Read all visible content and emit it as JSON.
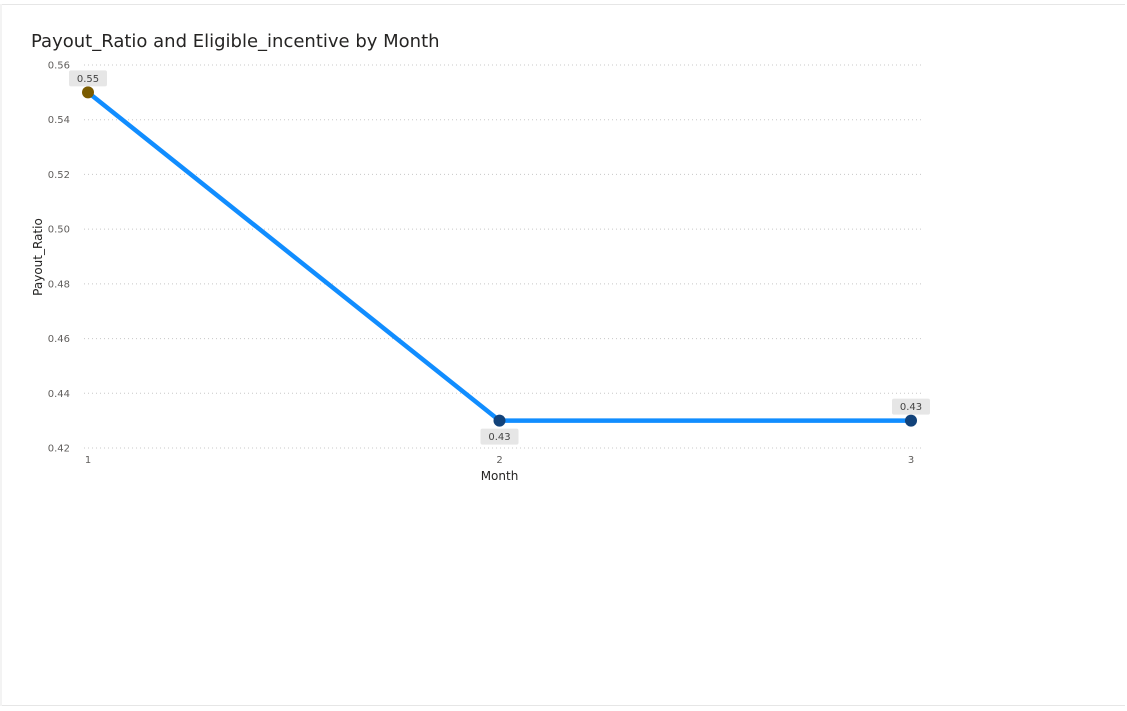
{
  "chart_data": {
    "type": "line",
    "title": "Payout_Ratio and Eligible_incentive by Month",
    "xlabel": "Month",
    "ylabel": "Payout_Ratio",
    "x": [
      1,
      2,
      3
    ],
    "x_tick_labels": [
      "1",
      "2",
      "3"
    ],
    "ylim": [
      0.42,
      0.56
    ],
    "y_ticks": [
      0.42,
      0.44,
      0.46,
      0.48,
      0.5,
      0.52,
      0.54,
      0.56
    ],
    "y_tick_labels": [
      "0.42",
      "0.44",
      "0.46",
      "0.48",
      "0.50",
      "0.52",
      "0.54",
      "0.56"
    ],
    "grid": true,
    "legend": false,
    "series": [
      {
        "values": [
          0.55,
          0.43,
          0.43
        ],
        "data_labels": [
          "0.55",
          "0.43",
          "0.43"
        ],
        "line_color": "#118DFF",
        "marker_colors": [
          "#7A5B00",
          "#12427A",
          "#12427A"
        ]
      }
    ]
  }
}
